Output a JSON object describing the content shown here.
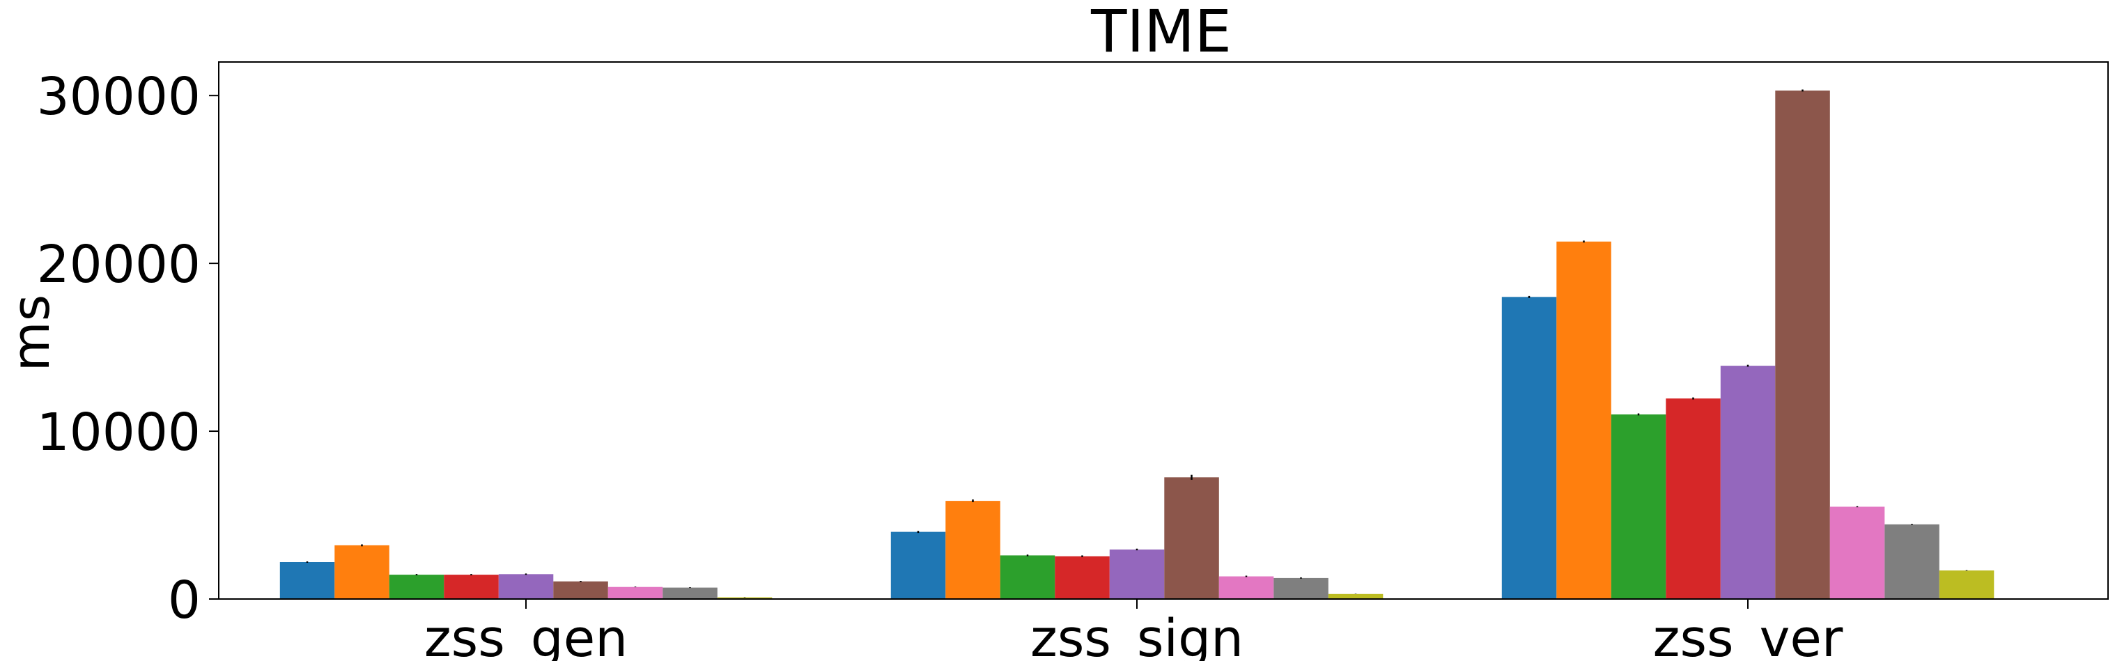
{
  "chart_data": {
    "type": "bar",
    "title": "TIME",
    "xlabel": "",
    "ylabel": "ms",
    "ylim": [
      0,
      32000
    ],
    "yticks": [
      0,
      10000,
      20000,
      30000
    ],
    "ytick_labels": [
      "0",
      "10000",
      "20000",
      "30000"
    ],
    "categories": [
      "zss_gen",
      "zss_sign",
      "zss_ver"
    ],
    "series": [
      {
        "color": "#1f77b4",
        "values": [
          2200,
          4000,
          18000
        ],
        "errors": [
          40,
          60,
          60
        ]
      },
      {
        "color": "#ff7f0e",
        "values": [
          3200,
          5850,
          21300
        ],
        "errors": [
          60,
          80,
          60
        ]
      },
      {
        "color": "#2ca02c",
        "values": [
          1450,
          2600,
          11000
        ],
        "errors": [
          40,
          50,
          60
        ]
      },
      {
        "color": "#d62728",
        "values": [
          1450,
          2550,
          11950
        ],
        "errors": [
          40,
          50,
          60
        ]
      },
      {
        "color": "#9467bd",
        "values": [
          1480,
          2950,
          13900
        ],
        "errors": [
          40,
          50,
          60
        ]
      },
      {
        "color": "#8c564b",
        "values": [
          1050,
          7250,
          30300
        ],
        "errors": [
          30,
          150,
          60
        ]
      },
      {
        "color": "#e377c2",
        "values": [
          720,
          1350,
          5500
        ],
        "errors": [
          20,
          40,
          30
        ]
      },
      {
        "color": "#7f7f7f",
        "values": [
          680,
          1250,
          4450
        ],
        "errors": [
          20,
          40,
          30
        ]
      },
      {
        "color": "#bcbd22",
        "values": [
          100,
          300,
          1700
        ],
        "errors": [
          10,
          10,
          20
        ]
      }
    ],
    "grid": false,
    "legend": "none"
  }
}
